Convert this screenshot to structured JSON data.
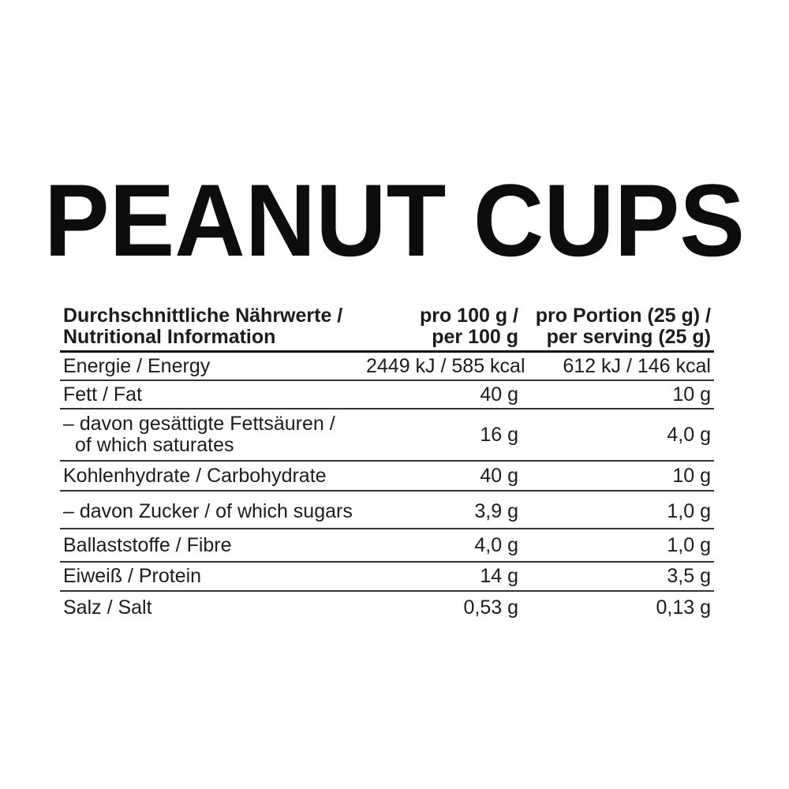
{
  "title": "PEANUT CUPS",
  "colors": {
    "background": "#ffffff",
    "text": "#1c1c1c",
    "title_text": "#0d0d0d",
    "header_rule": "#111111",
    "row_rule": "#333333"
  },
  "table": {
    "header": {
      "nutrients_line1": "Durchschnittliche Nährwerte /",
      "nutrients_line2": "Nutritional Information",
      "per100_line1": "pro 100 g /",
      "per100_line2": "per 100 g",
      "serving_line1": "pro Portion (25 g) /",
      "serving_line2": "per serving (25 g)"
    },
    "rows": [
      {
        "label1": "Energie / Energy",
        "per100": "2449 kJ / 585 kcal",
        "perServing": "612 kJ / 146 kcal"
      },
      {
        "label1": "Fett / Fat",
        "per100": "40 g",
        "perServing": "10 g"
      },
      {
        "label1": "– davon gesättigte Fettsäuren /",
        "label2": "of which saturates",
        "per100": "16 g",
        "perServing": "4,0 g"
      },
      {
        "label1": "Kohlenhydrate / Carbohydrate",
        "per100": "40 g",
        "perServing": "10 g"
      },
      {
        "label1": "– davon Zucker / of which sugars",
        "per100": "3,9 g",
        "perServing": "1,0 g"
      },
      {
        "label1": "Ballaststoffe / Fibre",
        "per100": "4,0 g",
        "perServing": "1,0 g"
      },
      {
        "label1": "Eiweiß / Protein",
        "per100": "14 g",
        "perServing": "3,5 g"
      },
      {
        "label1": "Salz / Salt",
        "per100": "0,53 g",
        "perServing": "0,13 g"
      }
    ]
  }
}
